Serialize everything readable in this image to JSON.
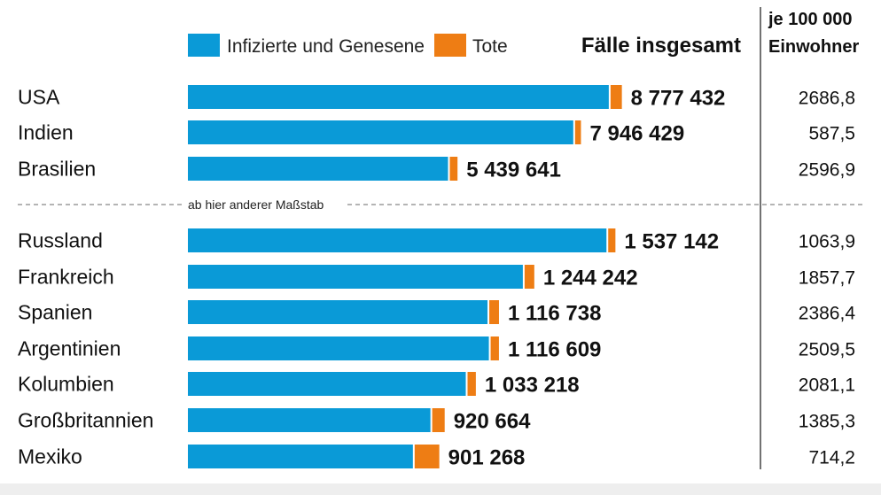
{
  "legend": {
    "infected_label": "Infizierte und Genesene",
    "deaths_label": "Tote",
    "infected_color": "#0a9ad7",
    "deaths_color": "#ee7d14"
  },
  "headers": {
    "total": "Fälle insgesamt",
    "per_capita_line1": "je 100 000",
    "per_capita_line2": "Einwohner"
  },
  "scale_note": "ab hier anderer Maßstab",
  "chart_data": {
    "type": "bar",
    "orientation": "horizontal",
    "stacked": true,
    "title": "",
    "series": [
      {
        "name": "Infizierte und Genesene",
        "color": "#0a9ad7"
      },
      {
        "name": "Tote",
        "color": "#ee7d14"
      }
    ],
    "groups": [
      {
        "scale_max": 9000000,
        "rows": [
          {
            "country": "USA",
            "total": 8777432,
            "total_label": "8 777 432",
            "deaths": 230000,
            "per_100k": "2686,8"
          },
          {
            "country": "Indien",
            "total": 7946429,
            "total_label": "7 946 429",
            "deaths": 120000,
            "per_100k": "587,5"
          },
          {
            "country": "Brasilien",
            "total": 5439641,
            "total_label": "5 439 641",
            "deaths": 157000,
            "per_100k": "2596,9"
          }
        ]
      },
      {
        "scale_max": 1600000,
        "note": "ab hier anderer Maßstab",
        "rows": [
          {
            "country": "Russland",
            "total": 1537142,
            "total_label": "1 537 142",
            "deaths": 26000,
            "per_100k": "1063,9"
          },
          {
            "country": "Frankreich",
            "total": 1244242,
            "total_label": "1 244 242",
            "deaths": 35000,
            "per_100k": "1857,7"
          },
          {
            "country": "Spanien",
            "total": 1116738,
            "total_label": "1 116 738",
            "deaths": 35000,
            "per_100k": "2386,4"
          },
          {
            "country": "Argentinien",
            "total": 1116609,
            "total_label": "1 116 609",
            "deaths": 30000,
            "per_100k": "2509,5"
          },
          {
            "country": "Kolumbien",
            "total": 1033218,
            "total_label": "1 033 218",
            "deaths": 30000,
            "per_100k": "2081,1"
          },
          {
            "country": "Großbritannien",
            "total": 920664,
            "total_label": "920 664",
            "deaths": 45000,
            "per_100k": "1385,3"
          },
          {
            "country": "Mexiko",
            "total": 901268,
            "total_label": "901 268",
            "deaths": 89000,
            "per_100k": "714,2"
          }
        ]
      }
    ]
  }
}
